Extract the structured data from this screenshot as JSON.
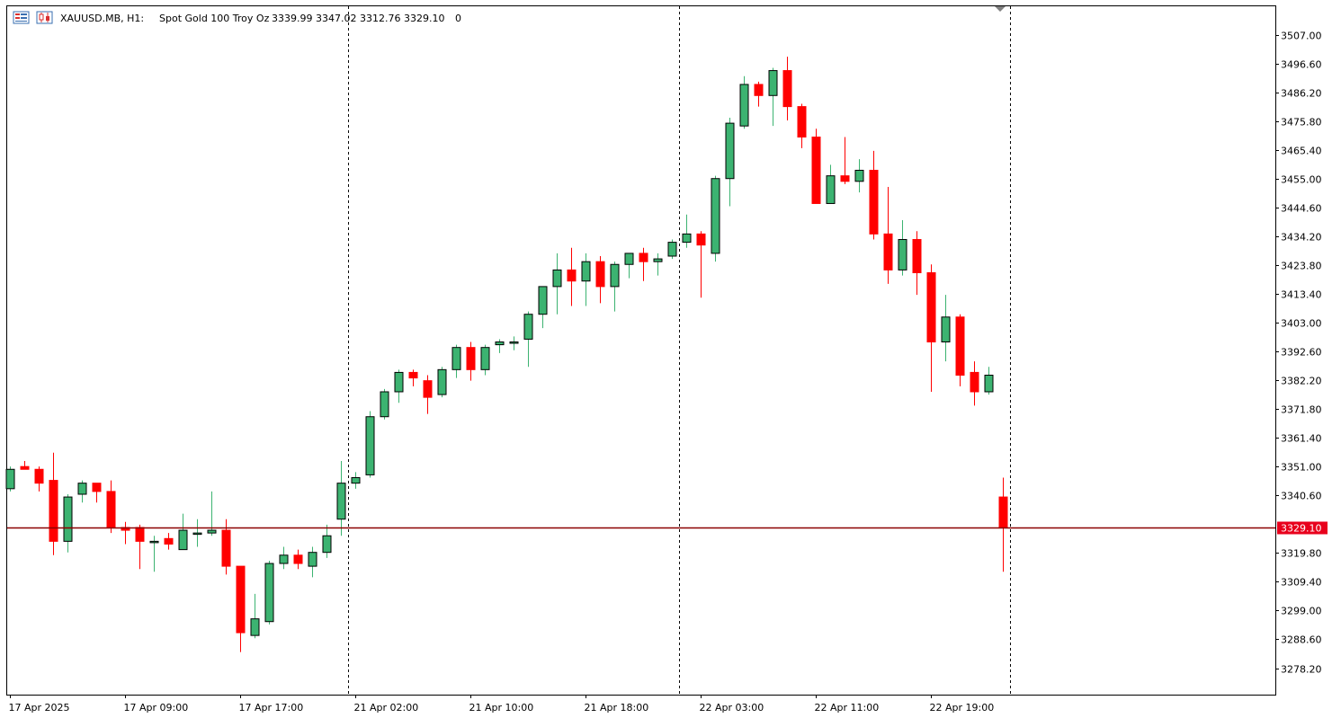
{
  "header": {
    "symbol": "XAUUSD.MB, H1:",
    "description": "Spot Gold 100 Troy Oz",
    "ohlc": "3339.99 3347.02 3312.76 3329.10",
    "volume": "0"
  },
  "current_price": {
    "label": "3329.10",
    "value": 3329.1
  },
  "colors": {
    "bull": "#3cb371",
    "bear": "#ff0000",
    "outline": "#000000",
    "price_line": "#8b0000",
    "price_tag": "#e8001c",
    "separator": "#000000"
  },
  "icons": {
    "toolbar_left": "chart-window-icon",
    "toolbar_right": "candles-icon"
  },
  "chart_data": {
    "type": "candlestick",
    "title": "XAUUSD.MB, H1:  Spot Gold 100 Troy Oz",
    "timeframe": "H1",
    "ylim": [
      3270,
      3520
    ],
    "y_ticks": [
      "3507.00",
      "3496.60",
      "3486.20",
      "3475.80",
      "3465.40",
      "3455.00",
      "3444.60",
      "3434.20",
      "3423.80",
      "3413.40",
      "3403.00",
      "3392.60",
      "3382.20",
      "3371.80",
      "3361.40",
      "3351.00",
      "3340.60",
      "3319.80",
      "3309.40",
      "3299.00",
      "3288.60",
      "3278.20"
    ],
    "x_ticks": [
      {
        "index": 0,
        "label": "17 Apr 2025"
      },
      {
        "index": 8,
        "label": "17 Apr 09:00"
      },
      {
        "index": 16,
        "label": "17 Apr 17:00"
      },
      {
        "index": 24,
        "label": "21 Apr 02:00"
      },
      {
        "index": 32,
        "label": "21 Apr 10:00"
      },
      {
        "index": 40,
        "label": "21 Apr 18:00"
      },
      {
        "index": 48,
        "label": "22 Apr 03:00"
      },
      {
        "index": 56,
        "label": "22 Apr 11:00"
      },
      {
        "index": 64,
        "label": "22 Apr 19:00"
      }
    ],
    "session_separators": [
      23,
      46,
      69
    ],
    "candles": [
      {
        "o": 3343.0,
        "h": 3351.0,
        "l": 3342.0,
        "c": 3350.0
      },
      {
        "o": 3351.0,
        "h": 3353.0,
        "l": 3350.0,
        "c": 3350.0
      },
      {
        "o": 3350.0,
        "h": 3351.0,
        "l": 3342.0,
        "c": 3345.0
      },
      {
        "o": 3346.0,
        "h": 3356.0,
        "l": 3319.0,
        "c": 3324.0
      },
      {
        "o": 3324.0,
        "h": 3341.0,
        "l": 3320.0,
        "c": 3340.0
      },
      {
        "o": 3341.0,
        "h": 3346.0,
        "l": 3338.0,
        "c": 3345.0
      },
      {
        "o": 3345.0,
        "h": 3345.0,
        "l": 3338.0,
        "c": 3342.0
      },
      {
        "o": 3342.0,
        "h": 3346.0,
        "l": 3327.0,
        "c": 3329.0
      },
      {
        "o": 3329.0,
        "h": 3331.0,
        "l": 3323.0,
        "c": 3328.0
      },
      {
        "o": 3329.0,
        "h": 3330.0,
        "l": 3314.0,
        "c": 3324.0
      },
      {
        "o": 3324.0,
        "h": 3326.0,
        "l": 3313.0,
        "c": 3324.0
      },
      {
        "o": 3325.0,
        "h": 3327.0,
        "l": 3321.0,
        "c": 3323.0
      },
      {
        "o": 3321.0,
        "h": 3334.0,
        "l": 3321.0,
        "c": 3328.0
      },
      {
        "o": 3327.0,
        "h": 3332.0,
        "l": 3322.0,
        "c": 3327.0
      },
      {
        "o": 3327.0,
        "h": 3342.0,
        "l": 3326.0,
        "c": 3328.0
      },
      {
        "o": 3328.0,
        "h": 3332.0,
        "l": 3312.0,
        "c": 3315.0
      },
      {
        "o": 3315.0,
        "h": 3315.0,
        "l": 3284.0,
        "c": 3291.0
      },
      {
        "o": 3290.0,
        "h": 3305.0,
        "l": 3289.0,
        "c": 3296.0
      },
      {
        "o": 3295.0,
        "h": 3317.0,
        "l": 3294.0,
        "c": 3316.0
      },
      {
        "o": 3316.0,
        "h": 3322.0,
        "l": 3314.0,
        "c": 3319.0
      },
      {
        "o": 3319.0,
        "h": 3321.0,
        "l": 3314.0,
        "c": 3316.0
      },
      {
        "o": 3315.0,
        "h": 3322.0,
        "l": 3311.0,
        "c": 3320.0
      },
      {
        "o": 3320.0,
        "h": 3330.0,
        "l": 3318.0,
        "c": 3326.0
      },
      {
        "o": 3332.0,
        "h": 3353.0,
        "l": 3326.0,
        "c": 3345.0
      },
      {
        "o": 3345.0,
        "h": 3349.0,
        "l": 3343.0,
        "c": 3347.0
      },
      {
        "o": 3348.0,
        "h": 3371.0,
        "l": 3347.0,
        "c": 3369.0
      },
      {
        "o": 3369.0,
        "h": 3379.0,
        "l": 3368.0,
        "c": 3378.0
      },
      {
        "o": 3378.0,
        "h": 3386.0,
        "l": 3374.0,
        "c": 3385.0
      },
      {
        "o": 3385.0,
        "h": 3386.0,
        "l": 3380.0,
        "c": 3383.0
      },
      {
        "o": 3382.0,
        "h": 3384.0,
        "l": 3370.0,
        "c": 3376.0
      },
      {
        "o": 3377.0,
        "h": 3387.0,
        "l": 3376.0,
        "c": 3386.0
      },
      {
        "o": 3386.0,
        "h": 3395.0,
        "l": 3383.0,
        "c": 3394.0
      },
      {
        "o": 3394.0,
        "h": 3396.0,
        "l": 3382.0,
        "c": 3386.0
      },
      {
        "o": 3386.0,
        "h": 3395.0,
        "l": 3384.0,
        "c": 3394.0
      },
      {
        "o": 3395.0,
        "h": 3397.0,
        "l": 3392.0,
        "c": 3396.0
      },
      {
        "o": 3396.0,
        "h": 3398.0,
        "l": 3393.0,
        "c": 3396.0
      },
      {
        "o": 3397.0,
        "h": 3407.0,
        "l": 3387.0,
        "c": 3406.0
      },
      {
        "o": 3406.0,
        "h": 3416.0,
        "l": 3401.0,
        "c": 3416.0
      },
      {
        "o": 3416.0,
        "h": 3428.0,
        "l": 3406.0,
        "c": 3422.0
      },
      {
        "o": 3422.0,
        "h": 3430.0,
        "l": 3409.0,
        "c": 3418.0
      },
      {
        "o": 3418.0,
        "h": 3428.0,
        "l": 3409.0,
        "c": 3425.0
      },
      {
        "o": 3425.0,
        "h": 3427.0,
        "l": 3410.0,
        "c": 3416.0
      },
      {
        "o": 3416.0,
        "h": 3425.0,
        "l": 3407.0,
        "c": 3424.0
      },
      {
        "o": 3424.0,
        "h": 3428.0,
        "l": 3419.0,
        "c": 3428.0
      },
      {
        "o": 3428.0,
        "h": 3430.0,
        "l": 3418.0,
        "c": 3425.0
      },
      {
        "o": 3425.0,
        "h": 3428.0,
        "l": 3420.0,
        "c": 3426.0
      },
      {
        "o": 3427.0,
        "h": 3433.0,
        "l": 3426.0,
        "c": 3432.0
      },
      {
        "o": 3432.0,
        "h": 3442.0,
        "l": 3430.0,
        "c": 3435.0
      },
      {
        "o": 3435.0,
        "h": 3436.0,
        "l": 3412.0,
        "c": 3431.0
      },
      {
        "o": 3428.0,
        "h": 3456.0,
        "l": 3425.0,
        "c": 3455.0
      },
      {
        "o": 3455.0,
        "h": 3477.0,
        "l": 3445.0,
        "c": 3475.0
      },
      {
        "o": 3474.0,
        "h": 3492.0,
        "l": 3473.0,
        "c": 3489.0
      },
      {
        "o": 3489.0,
        "h": 3490.0,
        "l": 3481.0,
        "c": 3485.0
      },
      {
        "o": 3485.0,
        "h": 3495.0,
        "l": 3474.0,
        "c": 3494.0
      },
      {
        "o": 3494.0,
        "h": 3499.0,
        "l": 3476.0,
        "c": 3481.0
      },
      {
        "o": 3481.0,
        "h": 3482.0,
        "l": 3466.0,
        "c": 3470.0
      },
      {
        "o": 3470.0,
        "h": 3473.0,
        "l": 3446.0,
        "c": 3446.0
      },
      {
        "o": 3446.0,
        "h": 3460.0,
        "l": 3446.0,
        "c": 3456.0
      },
      {
        "o": 3456.0,
        "h": 3470.0,
        "l": 3453.0,
        "c": 3454.0
      },
      {
        "o": 3454.0,
        "h": 3462.0,
        "l": 3450.0,
        "c": 3458.0
      },
      {
        "o": 3458.0,
        "h": 3465.0,
        "l": 3433.0,
        "c": 3435.0
      },
      {
        "o": 3435.0,
        "h": 3452.0,
        "l": 3417.0,
        "c": 3422.0
      },
      {
        "o": 3422.0,
        "h": 3440.0,
        "l": 3420.0,
        "c": 3433.0
      },
      {
        "o": 3433.0,
        "h": 3436.0,
        "l": 3413.0,
        "c": 3421.0
      },
      {
        "o": 3421.0,
        "h": 3424.0,
        "l": 3378.0,
        "c": 3396.0
      },
      {
        "o": 3396.0,
        "h": 3413.0,
        "l": 3389.0,
        "c": 3405.0
      },
      {
        "o": 3405.0,
        "h": 3406.0,
        "l": 3380.0,
        "c": 3384.0
      },
      {
        "o": 3385.0,
        "h": 3389.0,
        "l": 3373.0,
        "c": 3378.0
      },
      {
        "o": 3378.0,
        "h": 3387.0,
        "l": 3377.0,
        "c": 3384.0
      },
      {
        "o": 3340.0,
        "h": 3347.0,
        "l": 3313.0,
        "c": 3329.1
      }
    ]
  }
}
